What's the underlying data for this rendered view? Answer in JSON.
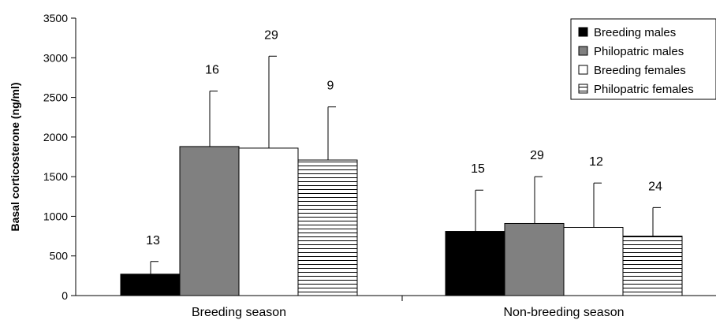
{
  "chart_data": {
    "type": "bar",
    "title": "",
    "xlabel": "",
    "ylabel": "Basal corticosterone (ng/ml)",
    "ylim": [
      0,
      3500
    ],
    "yticks": [
      0,
      500,
      1000,
      1500,
      2000,
      2500,
      3000,
      3500
    ],
    "categories": [
      "Breeding season",
      "Non-breeding season"
    ],
    "grid": false,
    "legend_position": "top-right",
    "series": [
      {
        "name": "Breeding males",
        "fill": "#000000",
        "pattern": "solid",
        "values": [
          270,
          810
        ],
        "errors": [
          160,
          520
        ],
        "n": [
          "13",
          "15"
        ]
      },
      {
        "name": "Philopatric males",
        "fill": "#808080",
        "pattern": "solid",
        "values": [
          1880,
          910
        ],
        "errors": [
          700,
          590
        ],
        "n": [
          "16",
          "29"
        ]
      },
      {
        "name": "Breeding females",
        "fill": "#ffffff",
        "pattern": "solid",
        "values": [
          1860,
          860
        ],
        "errors": [
          1160,
          560
        ],
        "n": [
          "29",
          "12"
        ]
      },
      {
        "name": "Philopatric females",
        "fill": "#ffffff",
        "pattern": "horizontal-lines",
        "values": [
          1710,
          750
        ],
        "errors": [
          670,
          360
        ],
        "n": [
          "9",
          "24"
        ]
      }
    ]
  }
}
